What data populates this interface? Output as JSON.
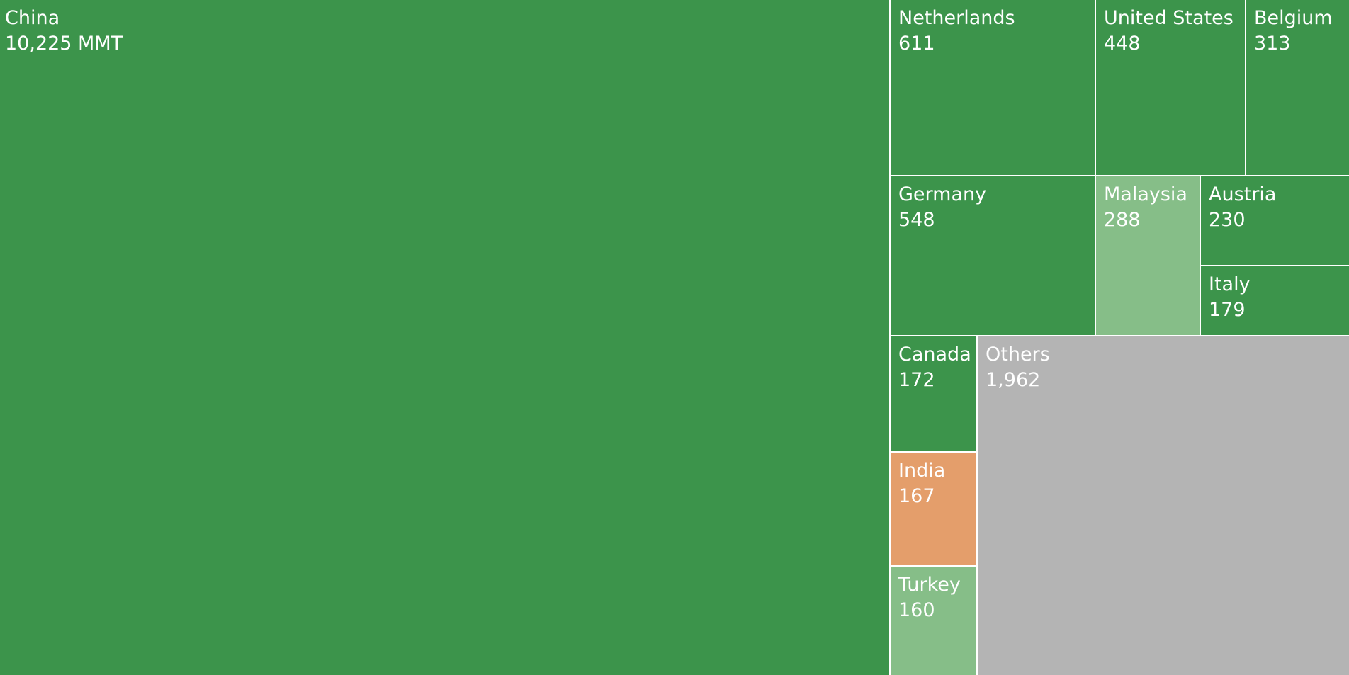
{
  "chart_data": {
    "type": "treemap",
    "unit": "MMT",
    "colors": {
      "dark_green": "#3c944b",
      "light_green": "#86be88",
      "orange": "#e49e6b",
      "gray": "#b4b4b4"
    },
    "items": [
      {
        "name": "China",
        "value": 10225,
        "value_label": "10,225 MMT",
        "color": "#3c944b"
      },
      {
        "name": "Netherlands",
        "value": 611,
        "value_label": "611",
        "color": "#3c944b"
      },
      {
        "name": "United States",
        "value": 448,
        "value_label": "448",
        "color": "#3c944b"
      },
      {
        "name": "Belgium",
        "value": 313,
        "value_label": "313",
        "color": "#3c944b"
      },
      {
        "name": "Germany",
        "value": 548,
        "value_label": "548",
        "color": "#3c944b"
      },
      {
        "name": "Malaysia",
        "value": 288,
        "value_label": "288",
        "color": "#86be88"
      },
      {
        "name": "Austria",
        "value": 230,
        "value_label": "230",
        "color": "#3c944b"
      },
      {
        "name": "Italy",
        "value": 179,
        "value_label": "179",
        "color": "#3c944b"
      },
      {
        "name": "Canada",
        "value": 172,
        "value_label": "172",
        "color": "#3c944b"
      },
      {
        "name": "India",
        "value": 167,
        "value_label": "167",
        "color": "#e49e6b"
      },
      {
        "name": "Turkey",
        "value": 160,
        "value_label": "160",
        "color": "#86be88"
      },
      {
        "name": "Others",
        "value": 1962,
        "value_label": "1,962",
        "color": "#b4b4b4"
      }
    ]
  }
}
